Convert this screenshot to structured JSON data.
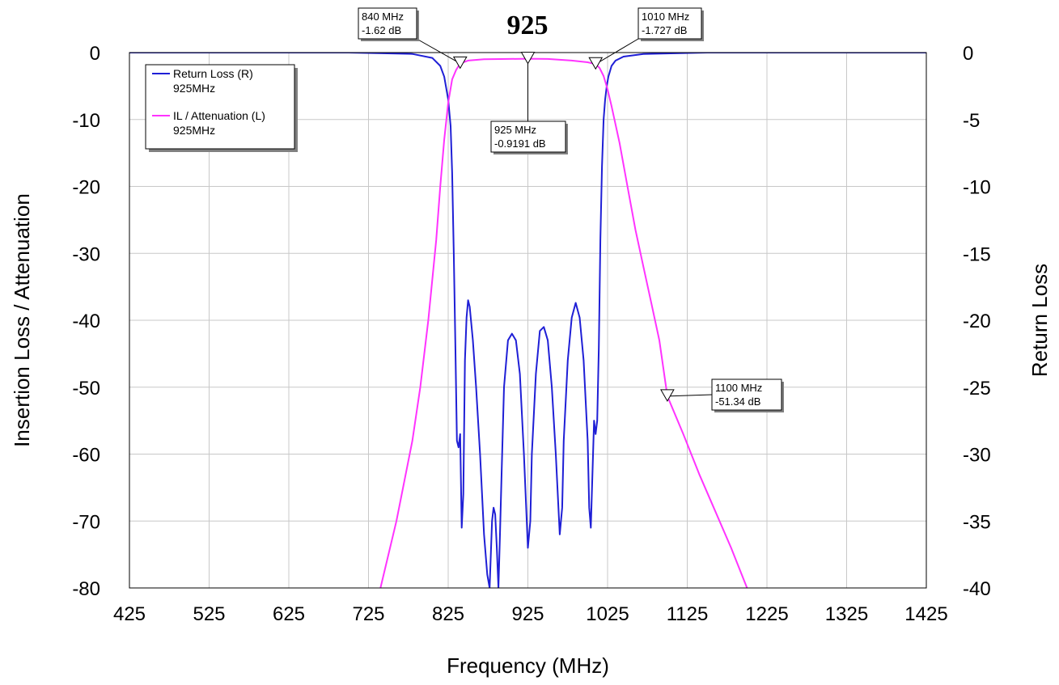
{
  "chart_data": {
    "type": "line",
    "title": "925",
    "xlabel": "Frequency (MHz)",
    "ylabel_left": "Insertion Loss / Attenuation",
    "ylabel_right": "Return Loss",
    "xlim": [
      425,
      1425
    ],
    "ylim_left": [
      -80,
      0
    ],
    "ylim_right": [
      -40,
      0
    ],
    "x_ticks": [
      "425",
      "525",
      "625",
      "725",
      "825",
      "925",
      "1025",
      "1125",
      "1225",
      "1325",
      "1425"
    ],
    "y_ticks_left": [
      "0",
      "-10",
      "-20",
      "-30",
      "-40",
      "-50",
      "-60",
      "-70",
      "-80"
    ],
    "y_ticks_right": [
      "0",
      "-5",
      "-10",
      "-15",
      "-20",
      "-25",
      "-30",
      "-35",
      "-40"
    ],
    "grid": true,
    "legend_position": "top-left",
    "legend": [
      {
        "line1": "Return Loss (R)",
        "line2": "925MHz",
        "color": "#1f1fd6"
      },
      {
        "line1": "IL / Attenuation (L)",
        "line2": "925MHz",
        "color": "#ff33ff"
      }
    ],
    "series": [
      {
        "name": "Return Loss (R)",
        "axis": "right",
        "color": "#1f1fd6",
        "x": [
          425,
          700,
          780,
          805,
          815,
          820,
          825,
          828,
          830,
          832,
          834,
          836,
          838,
          840,
          842,
          844,
          846,
          848,
          850,
          852,
          856,
          860,
          865,
          870,
          874,
          877,
          880,
          882,
          884,
          886,
          888,
          890,
          892,
          895,
          900,
          905,
          910,
          915,
          920,
          925,
          928,
          930,
          935,
          940,
          945,
          950,
          955,
          960,
          965,
          968,
          970,
          975,
          980,
          985,
          990,
          995,
          1000,
          1002,
          1004,
          1006,
          1008,
          1010,
          1012,
          1014,
          1016,
          1018,
          1020,
          1022,
          1024,
          1026,
          1030,
          1035,
          1045,
          1070,
          1150,
          1425
        ],
        "y": [
          0,
          0,
          -0.1,
          -0.4,
          -1.0,
          -1.8,
          -3.5,
          -5.5,
          -9,
          -15,
          -22,
          -29,
          -29.5,
          -28.5,
          -35.5,
          -33,
          -23,
          -19.8,
          -18.5,
          -19.0,
          -21.5,
          -25,
          -30,
          -36,
          -39,
          -40,
          -35,
          -34,
          -34.5,
          -37,
          -40,
          -36,
          -31.5,
          -25,
          -21.5,
          -21.0,
          -21.5,
          -24,
          -30,
          -37,
          -35,
          -30,
          -24,
          -20.8,
          -20.5,
          -21.5,
          -25,
          -30,
          -36,
          -34,
          -29,
          -23,
          -19.8,
          -18.7,
          -19.8,
          -23,
          -29,
          -34,
          -35.5,
          -31.5,
          -27.5,
          -28.5,
          -27.5,
          -22,
          -14,
          -8.5,
          -5,
          -3.5,
          -2.5,
          -1.8,
          -1.0,
          -0.6,
          -0.3,
          -0.1,
          0,
          0
        ]
      },
      {
        "name": "IL / Attenuation (L)",
        "axis": "left",
        "color": "#ff33ff",
        "x": [
          740,
          760,
          780,
          790,
          800,
          810,
          815,
          820,
          825,
          830,
          835,
          840,
          850,
          870,
          900,
          925,
          950,
          980,
          1000,
          1010,
          1015,
          1020,
          1025,
          1030,
          1040,
          1050,
          1060,
          1070,
          1080,
          1090,
          1100,
          1120,
          1140,
          1160,
          1180,
          1200
        ],
        "y": [
          -80,
          -70,
          -58,
          -50,
          -40,
          -28,
          -20,
          -13,
          -7.5,
          -4.0,
          -2.6,
          -1.62,
          -1.2,
          -1.0,
          -0.95,
          -0.9191,
          -0.95,
          -1.2,
          -1.45,
          -1.727,
          -2.3,
          -3.5,
          -5.5,
          -8,
          -13.5,
          -20,
          -26.5,
          -32,
          -37.5,
          -43,
          -51.34,
          -57,
          -63,
          -68.5,
          -74,
          -80
        ]
      }
    ],
    "markers": [
      {
        "freq": 840,
        "value": -1.62,
        "series": "IL / Attenuation (L)",
        "line1": "840 MHz",
        "line2": "-1.62 dB"
      },
      {
        "freq": 925,
        "value": -0.9191,
        "series": "IL / Attenuation (L)",
        "line1": "925 MHz",
        "line2": "-0.9191 dB"
      },
      {
        "freq": 1010,
        "value": -1.727,
        "series": "IL / Attenuation (L)",
        "line1": "1010 MHz",
        "line2": "-1.727 dB"
      },
      {
        "freq": 1100,
        "value": -51.34,
        "series": "IL / Attenuation (L)",
        "line1": "1100 MHz",
        "line2": "-51.34 dB"
      }
    ]
  }
}
